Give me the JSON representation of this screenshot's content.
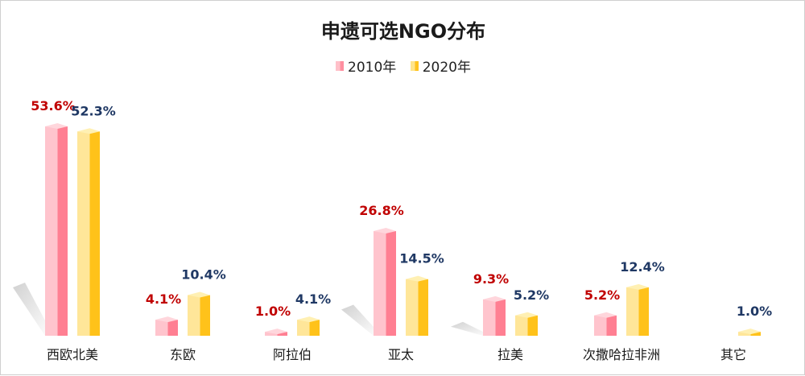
{
  "chart_data": {
    "type": "bar",
    "title": "申遗可选NGO分布",
    "categories": [
      "西欧北美",
      "东欧",
      "阿拉伯",
      "亚太",
      "拉美",
      "次撒哈拉非洲",
      "其它"
    ],
    "series": [
      {
        "name": "2010年",
        "values": [
          53.6,
          4.1,
          1.0,
          26.8,
          9.3,
          5.2,
          null
        ],
        "labels": [
          "53.6%",
          "4.1%",
          "1.0%",
          "26.8%",
          "9.3%",
          "5.2%",
          ""
        ],
        "color": "#ff8fa0",
        "label_color": "#c00000"
      },
      {
        "name": "2020年",
        "values": [
          52.3,
          10.4,
          4.1,
          14.5,
          5.2,
          12.4,
          1.0
        ],
        "labels": [
          "52.3%",
          "10.4%",
          "4.1%",
          "14.5%",
          "5.2%",
          "12.4%",
          "1.0%"
        ],
        "color": "#ffd23f",
        "label_color": "#1f3864"
      }
    ],
    "unit": "%",
    "ylim": [
      0,
      55
    ],
    "grid": false,
    "legend": "top-center"
  }
}
